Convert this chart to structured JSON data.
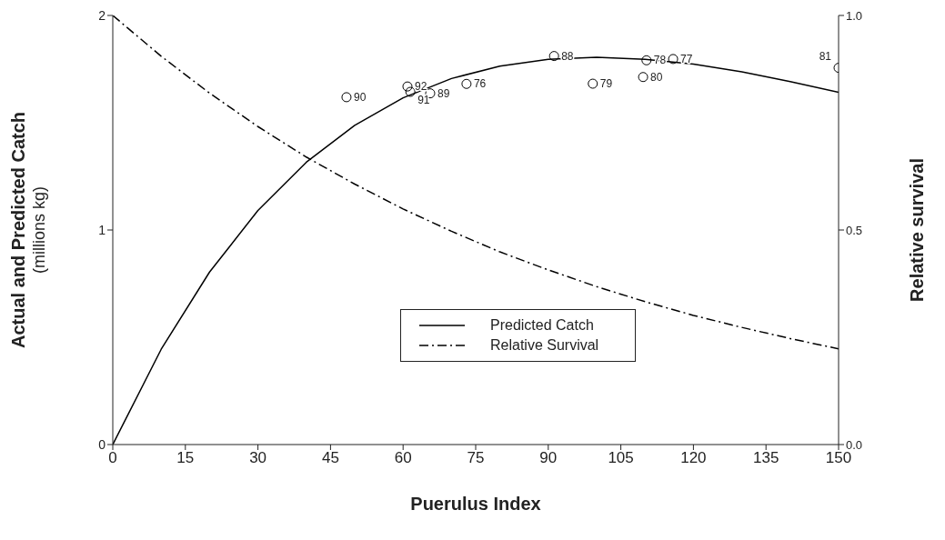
{
  "chart_data": {
    "type": "line",
    "xlabel": "Puerulus Index",
    "ylabel": "Actual and Predicted Catch\n(millions kg)",
    "y2label": "Relative survival",
    "xlim": [
      0,
      150
    ],
    "xticks": [
      0,
      15,
      30,
      45,
      60,
      75,
      90,
      105,
      120,
      135,
      150
    ],
    "ylim": [
      0,
      2
    ],
    "yticks": [
      0,
      1,
      2
    ],
    "y2lim": [
      0,
      1
    ],
    "y2ticks": [
      {
        "value": 0,
        "label": "0.0"
      },
      {
        "value": 0.5,
        "label": "0.5"
      },
      {
        "value": 1,
        "label": "1.0"
      }
    ],
    "grid": false,
    "legend": "bottom",
    "marker": "none",
    "series": [
      {
        "name": "Predicted Catch",
        "type": "line",
        "color": "#000000",
        "line_style": "solid",
        "x": [
          0,
          10,
          20,
          30,
          40,
          50,
          60,
          70,
          80,
          90,
          100,
          110,
          120,
          130,
          140,
          150
        ],
        "values": [
          0,
          0.444,
          0.804,
          1.091,
          1.316,
          1.488,
          1.616,
          1.706,
          1.764,
          1.796,
          1.805,
          1.796,
          1.773,
          1.737,
          1.692,
          1.642
        ]
      },
      {
        "name": "Relative Survival",
        "axis": "y2",
        "color": "#000000",
        "line_style": "dashed",
        "x": [
          0,
          10,
          20,
          30,
          40,
          50,
          60,
          70,
          80,
          90,
          100,
          110,
          120,
          130,
          140,
          150
        ],
        "values": [
          1,
          0.905,
          0.819,
          0.741,
          0.67,
          0.607,
          0.549,
          0.497,
          0.449,
          0.407,
          0.368,
          0.333,
          0.301,
          0.273,
          0.247,
          0.223
        ]
      },
      {
        "type": "scatter",
        "color": "#000000",
        "marker": "circle",
        "x": [
          48.3,
          60.9,
          61.5,
          65.6,
          73.1,
          91.2,
          99.2,
          110.3,
          109.6,
          115.8,
          150
        ],
        "values": [
          1.619,
          1.669,
          1.644,
          1.637,
          1.681,
          1.811,
          1.682,
          1.791,
          1.713,
          1.797,
          1.756
        ]
      }
    ],
    "annotations": [
      {
        "text": "90",
        "x": 48.3,
        "y": 1.619
      },
      {
        "text": "92",
        "x": 60.9,
        "y": 1.669
      },
      {
        "text": "91",
        "x": 61.5,
        "y": 1.644
      },
      {
        "text": "89",
        "x": 65.6,
        "y": 1.637
      },
      {
        "text": "76",
        "x": 73.1,
        "y": 1.681
      },
      {
        "text": "88",
        "x": 91.2,
        "y": 1.811
      },
      {
        "text": "79",
        "x": 99.2,
        "y": 1.682
      },
      {
        "text": "78",
        "x": 110.3,
        "y": 1.791
      },
      {
        "text": "80",
        "x": 109.6,
        "y": 1.713
      },
      {
        "text": "77",
        "x": 115.8,
        "y": 1.797
      },
      {
        "text": "81",
        "x": 150,
        "y": 1.756
      }
    ]
  }
}
